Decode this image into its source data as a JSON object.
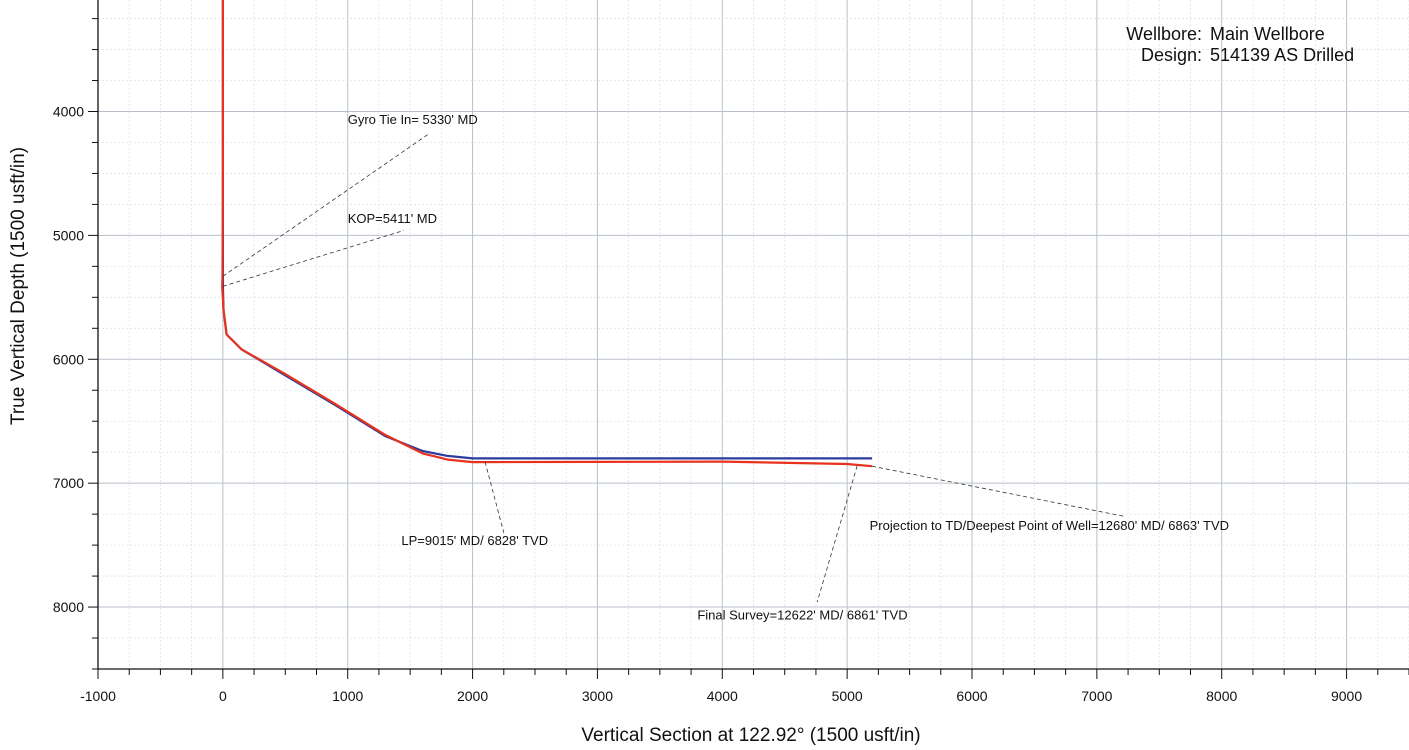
{
  "header": {
    "wellbore_label": "Wellbore:",
    "wellbore_value": "Main Wellbore",
    "design_label": "Design:",
    "design_value": "514139 AS Drilled"
  },
  "chart_data": {
    "type": "line",
    "xlabel": "Vertical Section at 122.92° (1500 usft/in)",
    "ylabel": "True Vertical Depth (1500 usft/in)",
    "xlim": [
      -1000,
      9500
    ],
    "ylim": [
      3100,
      8500
    ],
    "y_inverted": true,
    "grid": true,
    "x_ticks": [
      -1000,
      0,
      1000,
      2000,
      3000,
      4000,
      5000,
      6000,
      7000,
      8000,
      9000
    ],
    "y_ticks": [
      4000,
      5000,
      6000,
      7000,
      8000
    ],
    "series": [
      {
        "color": "#2b3d9e",
        "x": [
          0,
          0,
          0,
          0,
          5,
          30,
          150,
          500,
          900,
          1300,
          1600,
          1800,
          2000,
          3000,
          4000,
          5000,
          5200
        ],
        "y": [
          3100,
          4500,
          5330,
          5411,
          5600,
          5800,
          5920,
          6130,
          6370,
          6620,
          6740,
          6780,
          6800,
          6800,
          6800,
          6800,
          6800
        ]
      },
      {
        "color": "#e8321e",
        "x": [
          0,
          0,
          -3,
          -5,
          5,
          30,
          150,
          500,
          900,
          1300,
          1600,
          1800,
          2000,
          3000,
          4000,
          5000,
          5200
        ],
        "y": [
          3100,
          4500,
          5330,
          5411,
          5600,
          5800,
          5920,
          6120,
          6360,
          6610,
          6760,
          6810,
          6830,
          6828,
          6826,
          6845,
          6863
        ]
      }
    ],
    "annotations": [
      {
        "text": "Gyro Tie In= 5330' MD",
        "point": [
          0,
          5330
        ],
        "label": [
          1000,
          4100
        ],
        "lead": [
          1650,
          4180
        ]
      },
      {
        "text": "KOP=5411'  MD",
        "point": [
          0,
          5411
        ],
        "label": [
          1000,
          4900
        ],
        "lead": [
          1450,
          4960
        ]
      },
      {
        "text": "LP=9015' MD/ 6828' TVD",
        "point": [
          2100,
          6828
        ],
        "label": [
          1430,
          7500
        ],
        "lead": [
          2250,
          7400
        ]
      },
      {
        "text": "Projection to TD/Deepest Point of Well=12680' MD/ 6863' TVD",
        "point": [
          5200,
          6863
        ],
        "label": [
          5180,
          7380
        ],
        "lead": [
          7230,
          7270
        ]
      },
      {
        "text": "Final Survey=12622' MD/ 6861' TVD",
        "point": [
          5080,
          6861
        ],
        "label": [
          3800,
          8100
        ],
        "lead": [
          4760,
          7960
        ]
      }
    ]
  }
}
